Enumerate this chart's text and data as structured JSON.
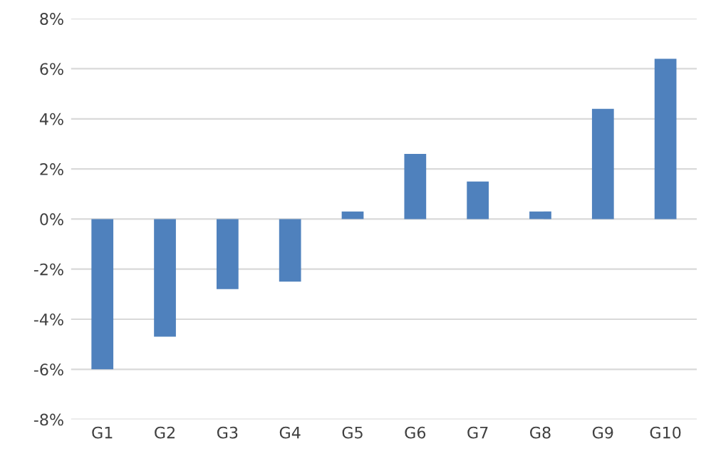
{
  "chart_data": {
    "type": "bar",
    "categories": [
      "G1",
      "G2",
      "G3",
      "G4",
      "G5",
      "G6",
      "G7",
      "G8",
      "G9",
      "G10"
    ],
    "values": [
      -6.0,
      -4.7,
      -2.8,
      -2.5,
      0.3,
      2.6,
      1.5,
      0.3,
      4.4,
      6.4
    ],
    "color": "#4f81bd",
    "ylim": [
      -8,
      8
    ],
    "yticks": [
      {
        "value": -8,
        "label": "-8%"
      },
      {
        "value": -6,
        "label": "-6%"
      },
      {
        "value": -4,
        "label": "-4%"
      },
      {
        "value": -2,
        "label": "-2%"
      },
      {
        "value": 0,
        "label": "0%"
      },
      {
        "value": 2,
        "label": "2%"
      },
      {
        "value": 4,
        "label": "4%"
      },
      {
        "value": 6,
        "label": "6%"
      },
      {
        "value": 8,
        "label": "8%"
      }
    ],
    "grid": "y"
  }
}
